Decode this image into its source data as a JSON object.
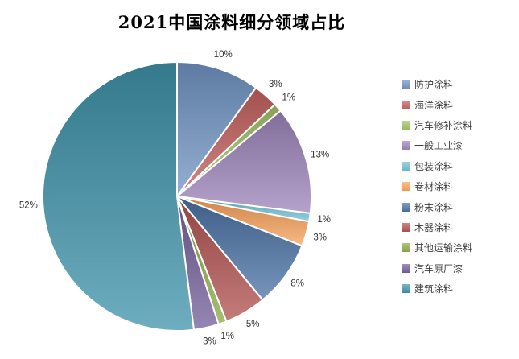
{
  "title": "2021中国涂料细分领域占比",
  "chart_data": {
    "type": "pie",
    "title": "2021中国涂料细分领域占比",
    "categories": [
      "防护涂料",
      "海洋涂料",
      "汽车修补涂料",
      "一般工业漆",
      "包装涂料",
      "卷材涂料",
      "粉末涂料",
      "木器涂料",
      "其他运输涂料",
      "汽车原厂漆",
      "建筑涂料"
    ],
    "values": [
      10,
      3,
      1,
      13,
      1,
      3,
      8,
      5,
      1,
      3,
      52
    ],
    "labels": [
      "10%",
      "3%",
      "1%",
      "13%",
      "1%",
      "3%",
      "8%",
      "5%",
      "1%",
      "3%",
      "52%"
    ],
    "label_suffix": "%",
    "colors": [
      "#7296C5",
      "#C4615E",
      "#A5C266",
      "#9D85BA",
      "#71C0D5",
      "#F9A25C",
      "#4C73A6",
      "#B25351",
      "#8CA946",
      "#75609B",
      "#3F93AB"
    ],
    "label_color": "#333333",
    "slice_border_color": "#FFFFFF",
    "legend_position": "right",
    "start_angle_deg": 0,
    "direction": "clockwise"
  }
}
